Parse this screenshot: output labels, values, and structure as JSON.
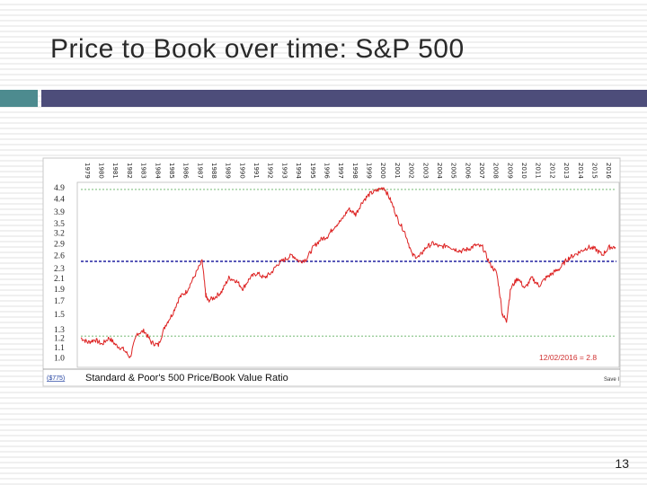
{
  "slide": {
    "title": "Price to Book over time: S&P 500",
    "page_number": "13"
  },
  "chart_data": {
    "type": "line",
    "title": "Standard & Poor's 500 Price/Book Value Ratio",
    "symbol": "($775)",
    "save_label": "Save I",
    "annotation": "12/02/2016 = 2.8",
    "years": [
      "1979",
      "1980",
      "1981",
      "1982",
      "1983",
      "1984",
      "1985",
      "1986",
      "1987",
      "1988",
      "1989",
      "1990",
      "1991",
      "1992",
      "1993",
      "1994",
      "1995",
      "1996",
      "1997",
      "1998",
      "1999",
      "2000",
      "2001",
      "2002",
      "2003",
      "2004",
      "2005",
      "2006",
      "2007",
      "2008",
      "2009",
      "2010",
      "2011",
      "2012",
      "2013",
      "2014",
      "2015",
      "2016"
    ],
    "y_ticks": [
      1.0,
      1.1,
      1.2,
      1.3,
      1.5,
      1.7,
      1.9,
      2.1,
      2.3,
      2.6,
      2.9,
      3.2,
      3.5,
      3.9,
      4.4,
      4.9
    ],
    "y_tick_labels": [
      "1.0",
      "1.1",
      "1.2",
      "1.3",
      "1.5",
      "1.7",
      "1.9",
      "2.1",
      "2.3",
      "2.6",
      "2.9",
      "3.2",
      "3.5",
      "3.9",
      "4.4",
      "4.9"
    ],
    "ylim": [
      0.95,
      5.0
    ],
    "y_scale": "log",
    "xlim": [
      1979,
      2017
    ],
    "grid": false,
    "reference_lines": [
      {
        "value": 4.8,
        "style": "dashed",
        "color": "#60b060"
      },
      {
        "value": 2.45,
        "style": "dashed",
        "color": "#2020a0"
      },
      {
        "value": 1.22,
        "style": "dashed",
        "color": "#60b060"
      }
    ],
    "series": [
      {
        "color": "#dd2222",
        "points": [
          [
            1979.0,
            1.2
          ],
          [
            1979.5,
            1.15
          ],
          [
            1980.0,
            1.18
          ],
          [
            1980.5,
            1.13
          ],
          [
            1981.0,
            1.2
          ],
          [
            1981.5,
            1.12
          ],
          [
            1982.0,
            1.08
          ],
          [
            1982.5,
            1.0
          ],
          [
            1983.0,
            1.25
          ],
          [
            1983.5,
            1.28
          ],
          [
            1984.0,
            1.15
          ],
          [
            1984.5,
            1.12
          ],
          [
            1985.0,
            1.35
          ],
          [
            1985.5,
            1.5
          ],
          [
            1986.0,
            1.75
          ],
          [
            1986.5,
            1.85
          ],
          [
            1987.0,
            2.1
          ],
          [
            1987.6,
            2.45
          ],
          [
            1987.85,
            1.8
          ],
          [
            1988.0,
            1.7
          ],
          [
            1988.5,
            1.75
          ],
          [
            1989.0,
            1.85
          ],
          [
            1989.5,
            2.1
          ],
          [
            1990.0,
            2.05
          ],
          [
            1990.5,
            1.9
          ],
          [
            1991.0,
            2.1
          ],
          [
            1991.5,
            2.2
          ],
          [
            1992.0,
            2.1
          ],
          [
            1992.5,
            2.2
          ],
          [
            1993.0,
            2.4
          ],
          [
            1993.5,
            2.5
          ],
          [
            1994.0,
            2.6
          ],
          [
            1994.5,
            2.45
          ],
          [
            1995.0,
            2.5
          ],
          [
            1995.5,
            2.8
          ],
          [
            1996.0,
            3.0
          ],
          [
            1996.5,
            3.1
          ],
          [
            1997.0,
            3.4
          ],
          [
            1997.5,
            3.6
          ],
          [
            1998.0,
            4.0
          ],
          [
            1998.5,
            3.8
          ],
          [
            1999.0,
            4.3
          ],
          [
            1999.5,
            4.6
          ],
          [
            2000.0,
            4.75
          ],
          [
            2000.5,
            4.9
          ],
          [
            2001.0,
            4.3
          ],
          [
            2001.5,
            3.6
          ],
          [
            2002.0,
            3.2
          ],
          [
            2002.5,
            2.6
          ],
          [
            2003.0,
            2.55
          ],
          [
            2003.5,
            2.8
          ],
          [
            2004.0,
            2.9
          ],
          [
            2004.5,
            2.8
          ],
          [
            2005.0,
            2.85
          ],
          [
            2005.5,
            2.75
          ],
          [
            2006.0,
            2.7
          ],
          [
            2006.5,
            2.75
          ],
          [
            2007.0,
            2.85
          ],
          [
            2007.5,
            2.8
          ],
          [
            2008.0,
            2.4
          ],
          [
            2008.5,
            2.2
          ],
          [
            2008.9,
            1.5
          ],
          [
            2009.2,
            1.4
          ],
          [
            2009.5,
            1.9
          ],
          [
            2010.0,
            2.1
          ],
          [
            2010.5,
            1.9
          ],
          [
            2011.0,
            2.1
          ],
          [
            2011.5,
            1.95
          ],
          [
            2012.0,
            2.1
          ],
          [
            2012.5,
            2.2
          ],
          [
            2013.0,
            2.3
          ],
          [
            2013.5,
            2.5
          ],
          [
            2014.0,
            2.6
          ],
          [
            2014.5,
            2.7
          ],
          [
            2015.0,
            2.8
          ],
          [
            2015.5,
            2.75
          ],
          [
            2016.0,
            2.6
          ],
          [
            2016.5,
            2.8
          ],
          [
            2016.92,
            2.8
          ]
        ]
      }
    ]
  }
}
